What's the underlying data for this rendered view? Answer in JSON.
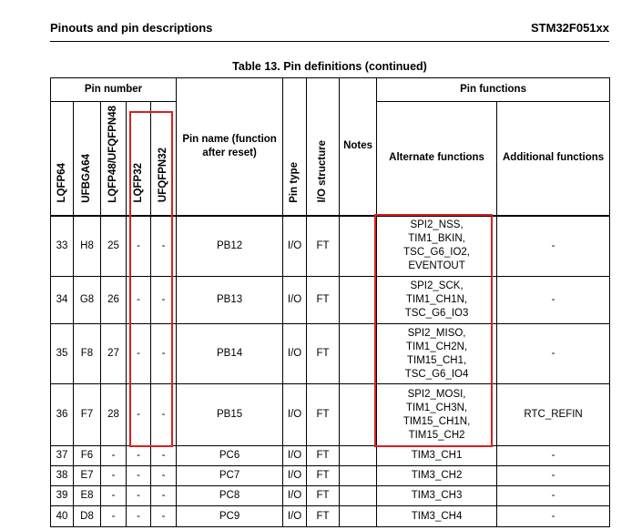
{
  "header": {
    "section": "Pinouts and pin descriptions",
    "document": "STM32F051xx"
  },
  "table": {
    "caption": "Table 13. Pin definitions (continued)",
    "group_headers": {
      "pin_number": "Pin number",
      "pin_functions": "Pin functions"
    },
    "columns": [
      "LQFP64",
      "UFBGA64",
      "LQFP48/UFQFPN48",
      "LQFP32",
      "UFQFPN32",
      "Pin name (function after reset)",
      "Pin type",
      "I/O structure",
      "Notes",
      "Alternate functions",
      "Additional functions"
    ],
    "rows": [
      {
        "cells": [
          "33",
          "H8",
          "25",
          "-",
          "-",
          "PB12",
          "I/O",
          "FT"
        ],
        "alternate": [
          "SPI2_NSS,",
          "TIM1_BKIN,",
          "TSC_G6_IO2,",
          "EVENTOUT"
        ],
        "additional": "-"
      },
      {
        "cells": [
          "34",
          "G8",
          "26",
          "-",
          "-",
          "PB13",
          "I/O",
          "FT"
        ],
        "alternate": [
          "SPI2_SCK,",
          "TIM1_CH1N,",
          "TSC_G6_IO3"
        ],
        "additional": "-"
      },
      {
        "cells": [
          "35",
          "F8",
          "27",
          "-",
          "-",
          "PB14",
          "I/O",
          "FT"
        ],
        "alternate": [
          "SPI2_MISO,",
          "TIM1_CH2N,",
          "TIM15_CH1,",
          "TSC_G6_IO4"
        ],
        "additional": "-"
      },
      {
        "cells": [
          "36",
          "F7",
          "28",
          "-",
          "-",
          "PB15",
          "I/O",
          "FT"
        ],
        "alternate": [
          "SPI2_MOSI,",
          "TIM1_CH3N,",
          "TIM15_CH1N,",
          "TIM15_CH2"
        ],
        "additional": "RTC_REFIN"
      },
      {
        "cells": [
          "37",
          "F6",
          "-",
          "-",
          "-",
          "PC6",
          "I/O",
          "FT"
        ],
        "alternate": [
          "TIM3_CH1"
        ],
        "additional": "-"
      },
      {
        "cells": [
          "38",
          "E7",
          "-",
          "-",
          "-",
          "PC7",
          "I/O",
          "FT"
        ],
        "alternate": [
          "TIM3_CH2"
        ],
        "additional": "-"
      },
      {
        "cells": [
          "39",
          "E8",
          "-",
          "-",
          "-",
          "PC8",
          "I/O",
          "FT"
        ],
        "alternate": [
          "TIM3_CH3"
        ],
        "additional": "-"
      },
      {
        "cells": [
          "40",
          "D8",
          "-",
          "-",
          "-",
          "PC9",
          "I/O",
          "FT"
        ],
        "alternate": [
          "TIM3_CH4"
        ],
        "additional": "-"
      }
    ]
  }
}
